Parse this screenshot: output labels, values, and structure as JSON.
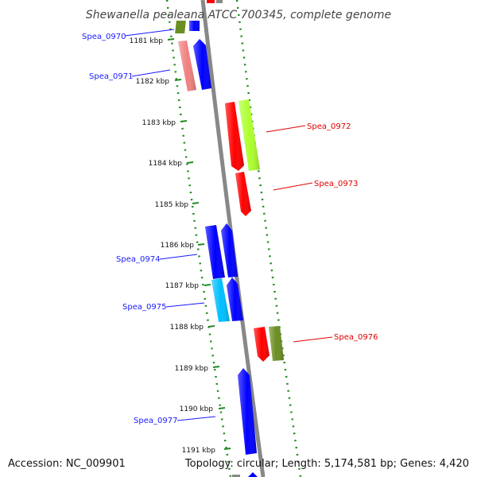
{
  "title": "Shewanella pealeana ATCC 700345, complete genome",
  "footer": {
    "accession": "Accession: NC_009901",
    "summary": "Topology: circular; Length: 5,174,581 bp; Genes: 4,420"
  },
  "ticks": [
    "1181 kbp",
    "1182 kbp",
    "1183 kbp",
    "1184 kbp",
    "1185 kbp",
    "1186 kbp",
    "1187 kbp",
    "1188 kbp",
    "1189 kbp",
    "1190 kbp",
    "1191 kbp"
  ],
  "genes": [
    {
      "id": "Spea_0970",
      "label_color": "#1a1aff",
      "strand": "forward",
      "colors": [
        "#6b8e23",
        "#0000ff"
      ]
    },
    {
      "id": "Spea_0971",
      "label_color": "#1a1aff",
      "strand": "forward",
      "colors": [
        "#f08080",
        "#0000ff"
      ]
    },
    {
      "id": "Spea_0972",
      "label_color": "#e00000",
      "strand": "reverse",
      "colors": [
        "#ff0000",
        "#adff2f"
      ]
    },
    {
      "id": "Spea_0973",
      "label_color": "#e00000",
      "strand": "reverse",
      "colors": [
        "#ff0000"
      ]
    },
    {
      "id": "Spea_0974",
      "label_color": "#1a1aff",
      "strand": "forward",
      "colors": [
        "#0000ff",
        "#0000ff"
      ]
    },
    {
      "id": "Spea_0975",
      "label_color": "#1a1aff",
      "strand": "forward",
      "colors": [
        "#00bfff",
        "#0000ff"
      ]
    },
    {
      "id": "Spea_0976",
      "label_color": "#e00000",
      "strand": "reverse",
      "colors": [
        "#ff0000",
        "#6b8e23"
      ]
    },
    {
      "id": "Spea_0977",
      "label_color": "#1a1aff",
      "strand": "forward",
      "colors": [
        "#0000ff"
      ]
    }
  ]
}
